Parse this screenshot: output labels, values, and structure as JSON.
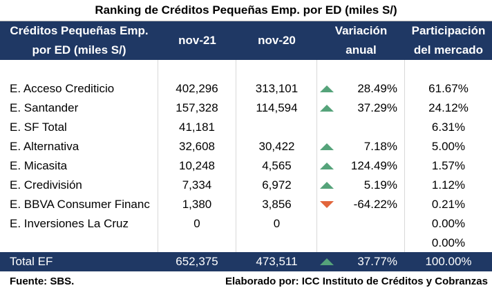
{
  "title": "Ranking de Créditos Pequeñas Emp. por ED (miles S/)",
  "header": {
    "col_name_line1": "Créditos Pequeñas Emp.",
    "col_name_line2": "por ED (miles S/)",
    "col_nov21": "nov-21",
    "col_nov20": "nov-20",
    "col_var_line1": "Variación",
    "col_var_line2": "anual",
    "col_share_line1": "Participación",
    "col_share_line2": "del mercado"
  },
  "rows": [
    {
      "name": "E. Acceso Crediticio",
      "nov21": "402,296",
      "nov20": "313,101",
      "trend": "up",
      "variation": "28.49%",
      "share": "61.67%"
    },
    {
      "name": "E. Santander",
      "nov21": "157,328",
      "nov20": "114,594",
      "trend": "up",
      "variation": "37.29%",
      "share": "24.12%"
    },
    {
      "name": "E. SF Total",
      "nov21": "41,181",
      "nov20": "",
      "trend": "",
      "variation": "",
      "share": "6.31%"
    },
    {
      "name": "E. Alternativa",
      "nov21": "32,608",
      "nov20": "30,422",
      "trend": "up",
      "variation": "7.18%",
      "share": "5.00%"
    },
    {
      "name": "E. Micasita",
      "nov21": "10,248",
      "nov20": "4,565",
      "trend": "up",
      "variation": "124.49%",
      "share": "1.57%"
    },
    {
      "name": "E. Credivisión",
      "nov21": "7,334",
      "nov20": "6,972",
      "trend": "up",
      "variation": "5.19%",
      "share": "1.12%"
    },
    {
      "name": "E. BBVA Consumer Financ",
      "nov21": "1,380",
      "nov20": "3,856",
      "trend": "down",
      "variation": "-64.22%",
      "share": "0.21%"
    },
    {
      "name": "E. Inversiones La Cruz",
      "nov21": "0",
      "nov20": "0",
      "trend": "",
      "variation": "",
      "share": "0.00%"
    },
    {
      "name": "",
      "nov21": "",
      "nov20": "",
      "trend": "",
      "variation": "",
      "share": "0.00%"
    }
  ],
  "total": {
    "name": "Total EF",
    "nov21": "652,375",
    "nov20": "473,511",
    "trend": "up",
    "variation": "37.77%",
    "share": "100.00%"
  },
  "footer": {
    "source": "Fuente: SBS.",
    "elaborated": "Elaborado por: ICC Instituto de Créditos y Cobranzas"
  },
  "colors": {
    "header_bg": "#1f3864",
    "up_arrow": "#55a37a",
    "down_arrow": "#e2653b"
  }
}
